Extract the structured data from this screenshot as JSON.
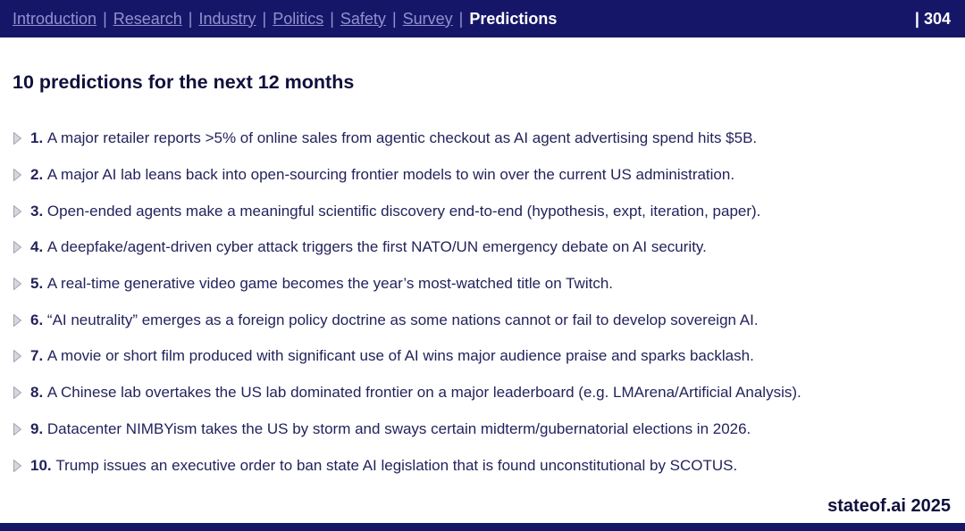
{
  "header": {
    "nav_items": [
      "Introduction",
      "Research",
      "Industry",
      "Politics",
      "Safety",
      "Survey",
      "Predictions"
    ],
    "active_item": "Predictions",
    "separator": "|",
    "page_number": "| 304"
  },
  "main": {
    "title": "10 predictions for the next 12 months",
    "predictions": [
      {
        "number": "1.",
        "text": "A major retailer reports >5% of online sales from agentic checkout as AI agent advertising spend hits $5B."
      },
      {
        "number": "2.",
        "text": "A major AI lab leans back into open-sourcing frontier models to win over the current US administration."
      },
      {
        "number": "3.",
        "text": "Open-ended agents make a meaningful scientific discovery end-to-end (hypothesis, expt, iteration, paper)."
      },
      {
        "number": "4.",
        "text": "A deepfake/agent-driven cyber attack triggers the first NATO/UN emergency debate on AI security."
      },
      {
        "number": "5.",
        "text": "A real-time generative video game becomes the year’s most-watched title on Twitch."
      },
      {
        "number": "6.",
        "text": "“AI neutrality” emerges as a foreign policy doctrine as some nations cannot or fail to develop sovereign AI."
      },
      {
        "number": "7.",
        "text": "A movie or short film produced with significant use of AI wins major audience praise and sparks backlash."
      },
      {
        "number": "8.",
        "text": "A Chinese lab overtakes the US lab dominated frontier on a major leaderboard (e.g. LMArena/Artificial Analysis)."
      },
      {
        "number": "9.",
        "text": "Datacenter NIMBYism takes the US by storm and sways certain midterm/gubernatorial elections in 2026."
      },
      {
        "number": "10.",
        "text": "Trump issues an executive order to ban state AI legislation that is found unconstitutional by SCOTUS."
      }
    ]
  },
  "footer": {
    "branding": "stateof.ai 2025"
  },
  "colors": {
    "navy": "#161669",
    "nav_inactive_text": "#9191ce",
    "nav_active_text": "#ffffff",
    "body_text": "#23235c",
    "title_text": "#10103c",
    "bullet_fill": "#d6d6de",
    "bullet_stroke": "#a3a3af"
  }
}
